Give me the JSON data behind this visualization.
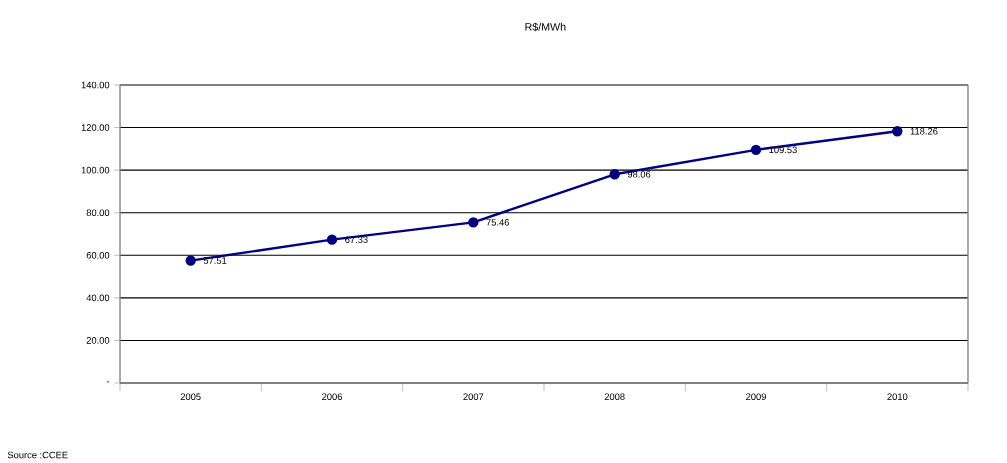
{
  "chart_data": {
    "type": "line",
    "title": "R$/MWh",
    "categories": [
      "2005",
      "2006",
      "2007",
      "2008",
      "2009",
      "2010"
    ],
    "values": [
      57.51,
      67.33,
      75.46,
      98.06,
      109.53,
      118.26
    ],
    "color": "#000080",
    "marker": "circle",
    "data_labels": true,
    "grid": "y",
    "ylim": [
      0,
      140
    ],
    "yticks": [
      {
        "value": 0,
        "label": "-"
      },
      {
        "value": 20,
        "label": "20.00"
      },
      {
        "value": 40,
        "label": "40.00"
      },
      {
        "value": 60,
        "label": "60.00"
      },
      {
        "value": 80,
        "label": "80.00"
      },
      {
        "value": 100,
        "label": "100.00"
      },
      {
        "value": 120,
        "label": "120.00"
      },
      {
        "value": 140,
        "label": "140.00"
      }
    ],
    "annotations": [
      "Source :CCEE"
    ]
  }
}
